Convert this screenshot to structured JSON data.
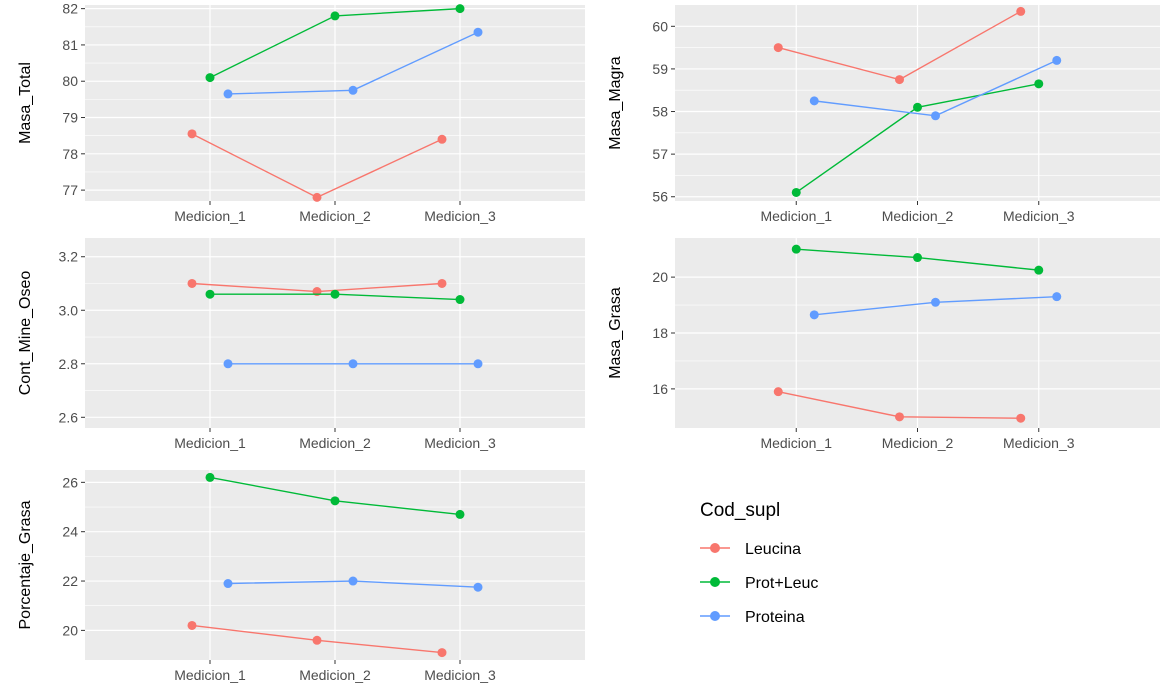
{
  "chart_data": [
    {
      "type": "line",
      "ylabel": "Masa_Total",
      "categories": [
        "Medicion_1",
        "Medicion_2",
        "Medicion_3"
      ],
      "ylim": [
        76.7,
        82.1
      ],
      "yticks": [
        77,
        78,
        79,
        80,
        81,
        82
      ],
      "series": [
        {
          "name": "Leucina",
          "values": [
            78.55,
            76.8,
            78.4
          ]
        },
        {
          "name": "Prot+Leuc",
          "values": [
            80.1,
            81.8,
            82.0
          ]
        },
        {
          "name": "Proteina",
          "values": [
            79.65,
            79.75,
            81.35
          ]
        }
      ]
    },
    {
      "type": "line",
      "ylabel": "Masa_Magra",
      "categories": [
        "Medicion_1",
        "Medicion_2",
        "Medicion_3"
      ],
      "ylim": [
        55.9,
        60.5
      ],
      "yticks": [
        56,
        57,
        58,
        59,
        60
      ],
      "series": [
        {
          "name": "Leucina",
          "values": [
            59.5,
            58.75,
            60.35
          ]
        },
        {
          "name": "Prot+Leuc",
          "values": [
            56.1,
            58.1,
            58.65
          ]
        },
        {
          "name": "Proteina",
          "values": [
            58.25,
            57.9,
            59.2
          ]
        }
      ]
    },
    {
      "type": "line",
      "ylabel": "Cont_Mine_Oseo",
      "categories": [
        "Medicion_1",
        "Medicion_2",
        "Medicion_3"
      ],
      "ylim": [
        2.56,
        3.27
      ],
      "yticks": [
        2.6,
        2.8,
        3.0,
        3.2
      ],
      "yticklabels": [
        "2.6",
        "2.8",
        "3.0",
        "3.2"
      ],
      "series": [
        {
          "name": "Leucina",
          "values": [
            3.1,
            3.07,
            3.1
          ]
        },
        {
          "name": "Prot+Leuc",
          "values": [
            3.06,
            3.06,
            3.04
          ]
        },
        {
          "name": "Proteina",
          "values": [
            2.8,
            2.8,
            2.8
          ]
        }
      ]
    },
    {
      "type": "line",
      "ylabel": "Masa_Grasa",
      "categories": [
        "Medicion_1",
        "Medicion_2",
        "Medicion_3"
      ],
      "ylim": [
        14.6,
        21.4
      ],
      "yticks": [
        16,
        18,
        20
      ],
      "series": [
        {
          "name": "Leucina",
          "values": [
            15.9,
            15.0,
            14.95
          ]
        },
        {
          "name": "Prot+Leuc",
          "values": [
            21.0,
            20.7,
            20.25
          ]
        },
        {
          "name": "Proteina",
          "values": [
            18.65,
            19.1,
            19.3
          ]
        }
      ]
    },
    {
      "type": "line",
      "ylabel": "Porcentaje_Grasa",
      "categories": [
        "Medicion_1",
        "Medicion_2",
        "Medicion_3"
      ],
      "ylim": [
        18.8,
        26.5
      ],
      "yticks": [
        20,
        22,
        24,
        26
      ],
      "series": [
        {
          "name": "Leucina",
          "values": [
            20.2,
            19.6,
            19.1
          ]
        },
        {
          "name": "Prot+Leuc",
          "values": [
            26.2,
            25.25,
            24.7
          ]
        },
        {
          "name": "Proteina",
          "values": [
            21.9,
            22.0,
            21.75
          ]
        }
      ]
    }
  ],
  "legend": {
    "title": "Cod_supl",
    "items": [
      {
        "label": "Leucina",
        "color": "#F8766D"
      },
      {
        "label": "Prot+Leuc",
        "color": "#00BA38"
      },
      {
        "label": "Proteina",
        "color": "#619CFF"
      }
    ]
  },
  "colors": {
    "panel_background": "#EBEBEB",
    "grid": "#FFFFFF",
    "axis_text": "#4D4D4D",
    "Leucina": "#F8766D",
    "Prot+Leuc": "#00BA38",
    "Proteina": "#619CFF"
  }
}
